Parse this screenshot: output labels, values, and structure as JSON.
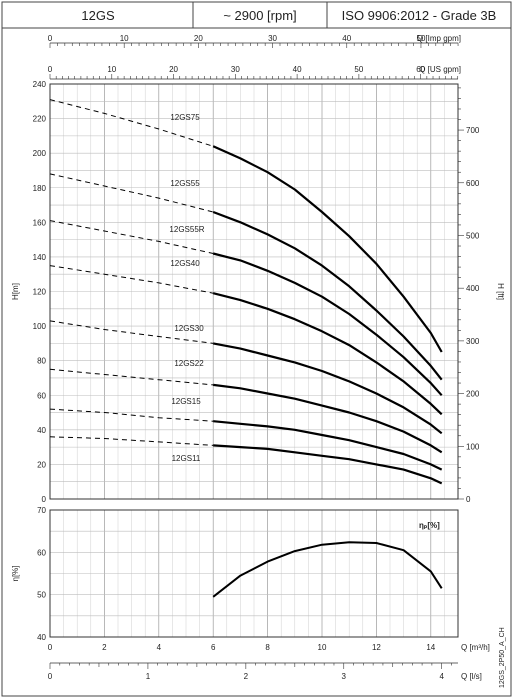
{
  "header": {
    "model": "12GS",
    "speed": "~ 2900 [rpm]",
    "standard": "ISO 9906:2012 - Grade 3B"
  },
  "axes": {
    "imp_gpm": {
      "label": "Q [Imp gpm]",
      "ticks": [
        0,
        10,
        20,
        30,
        40,
        50
      ]
    },
    "us_gpm": {
      "label": "Q [US gpm]",
      "ticks": [
        0,
        10,
        20,
        30,
        40,
        50,
        60
      ]
    },
    "h_m": {
      "label": "H[m]",
      "ticks": [
        0,
        20,
        40,
        60,
        80,
        100,
        120,
        140,
        160,
        180,
        200,
        220,
        240
      ]
    },
    "h_ft": {
      "label": "H [ft]",
      "ticks": [
        0,
        100,
        200,
        300,
        400,
        500,
        600,
        700
      ]
    },
    "eff": {
      "label": "η[%]",
      "ticks": [
        40,
        50,
        60,
        70
      ]
    },
    "q_m3h": {
      "label": "Q [m³/h]",
      "ticks": [
        0,
        2,
        4,
        6,
        8,
        10,
        12,
        14
      ]
    },
    "q_ls": {
      "label": "Q [l/s]",
      "ticks": [
        0,
        1,
        2,
        3,
        4
      ]
    }
  },
  "efficiency_label": "ηₚ[%]",
  "side_code": "12GS_2P50_A_CH",
  "chart_data": [
    {
      "type": "line",
      "xlabel": "Q [m³/h]",
      "ylabel": "H[m]",
      "xlim": [
        0,
        15
      ],
      "ylim": [
        0,
        240
      ],
      "grid": true,
      "dashed_below_q": 6,
      "series": [
        {
          "name": "12GS75",
          "x": [
            0,
            2,
            4,
            6,
            7,
            8,
            9,
            10,
            11,
            12,
            13,
            14,
            14.4
          ],
          "y": [
            231,
            223,
            214,
            204,
            197,
            189,
            179,
            166,
            152,
            136,
            117,
            96,
            85
          ]
        },
        {
          "name": "12GS55",
          "x": [
            0,
            2,
            4,
            6,
            7,
            8,
            9,
            10,
            11,
            12,
            13,
            14,
            14.4
          ],
          "y": [
            188,
            181,
            174,
            166,
            160,
            153,
            145,
            135,
            123,
            109,
            94,
            77,
            69
          ]
        },
        {
          "name": "12GS55R",
          "x": [
            0,
            2,
            4,
            6,
            7,
            8,
            9,
            10,
            11,
            12,
            13,
            14,
            14.4
          ],
          "y": [
            161,
            155,
            149,
            142,
            138,
            132,
            125,
            117,
            107,
            95,
            82,
            67,
            60
          ]
        },
        {
          "name": "12GS40",
          "x": [
            0,
            2,
            4,
            6,
            7,
            8,
            9,
            10,
            11,
            12,
            13,
            14,
            14.4
          ],
          "y": [
            135,
            130,
            125,
            119,
            115,
            110,
            104,
            97,
            89,
            79,
            68,
            55,
            49
          ]
        },
        {
          "name": "12GS30",
          "x": [
            0,
            2,
            4,
            6,
            7,
            8,
            9,
            10,
            11,
            12,
            13,
            14,
            14.4
          ],
          "y": [
            103,
            98,
            94,
            90,
            87,
            83,
            79,
            74,
            68,
            61,
            53,
            43,
            38
          ]
        },
        {
          "name": "12GS22",
          "x": [
            0,
            2,
            4,
            6,
            7,
            8,
            9,
            10,
            11,
            12,
            13,
            14,
            14.4
          ],
          "y": [
            75,
            72,
            69,
            66,
            64,
            61,
            58,
            54,
            50,
            45,
            39,
            31,
            27
          ]
        },
        {
          "name": "12GS15",
          "x": [
            0,
            2,
            4,
            6,
            7,
            8,
            9,
            10,
            11,
            12,
            13,
            14,
            14.4
          ],
          "y": [
            52,
            50,
            47,
            45,
            43.5,
            42,
            40,
            37,
            34,
            30,
            26,
            20,
            17
          ]
        },
        {
          "name": "12GS11",
          "x": [
            0,
            2,
            4,
            6,
            7,
            8,
            9,
            10,
            11,
            12,
            13,
            14,
            14.4
          ],
          "y": [
            36,
            35,
            33,
            31,
            30,
            29,
            27,
            25,
            23,
            20,
            17,
            12,
            9
          ]
        }
      ]
    },
    {
      "type": "line",
      "xlabel": "Q [m³/h]",
      "ylabel": "η[%]",
      "xlim": [
        0,
        15
      ],
      "ylim": [
        40,
        70
      ],
      "grid": true,
      "series": [
        {
          "name": "ηₚ[%]",
          "x": [
            6,
            7,
            8,
            9,
            10,
            11,
            12,
            13,
            14,
            14.4
          ],
          "y": [
            49.5,
            54.5,
            57.8,
            60.3,
            61.8,
            62.4,
            62.2,
            60.5,
            55.5,
            51.5
          ]
        }
      ]
    }
  ]
}
